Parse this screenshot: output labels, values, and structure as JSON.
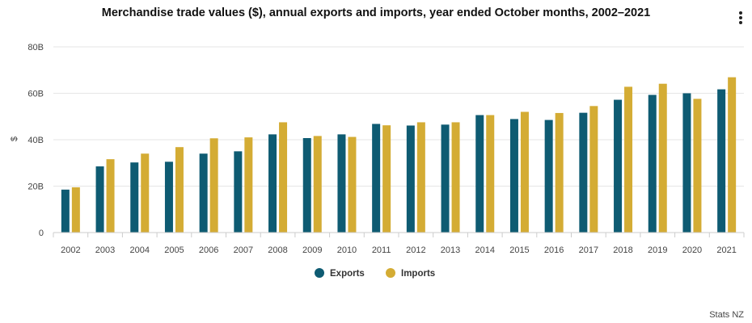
{
  "chart_data": {
    "type": "bar",
    "title": "Merchandise trade values ($), annual exports and imports, year ended October months, 2002–2021",
    "xlabel": "",
    "ylabel": "$",
    "ylim": [
      0,
      80
    ],
    "yticks": [
      0,
      20,
      40,
      60,
      80
    ],
    "ytick_labels": [
      "0",
      "20B",
      "40B",
      "60B",
      "80B"
    ],
    "categories": [
      "2002",
      "2003",
      "2004",
      "2005",
      "2006",
      "2007",
      "2008",
      "2009",
      "2010",
      "2011",
      "2012",
      "2013",
      "2014",
      "2015",
      "2016",
      "2017",
      "2018",
      "2019",
      "2020",
      "2021"
    ],
    "series": [
      {
        "name": "Exports",
        "color": "#0e5b72",
        "values": [
          18.5,
          28.5,
          30.2,
          30.5,
          34.0,
          35.0,
          42.3,
          40.7,
          42.3,
          46.8,
          46.1,
          46.5,
          50.6,
          48.9,
          48.5,
          51.6,
          57.2,
          59.3,
          60.0,
          61.7
        ]
      },
      {
        "name": "Imports",
        "color": "#d4ac34",
        "values": [
          19.5,
          31.6,
          34.0,
          36.8,
          40.6,
          41.0,
          47.5,
          41.6,
          41.2,
          46.2,
          47.5,
          47.5,
          50.6,
          52.0,
          51.5,
          54.5,
          62.8,
          64.1,
          57.6,
          66.9
        ]
      }
    ],
    "grid": true,
    "legend": "bottom-center"
  },
  "menu": {
    "icon": "kebab-menu-icon"
  },
  "credit": "Stats NZ"
}
